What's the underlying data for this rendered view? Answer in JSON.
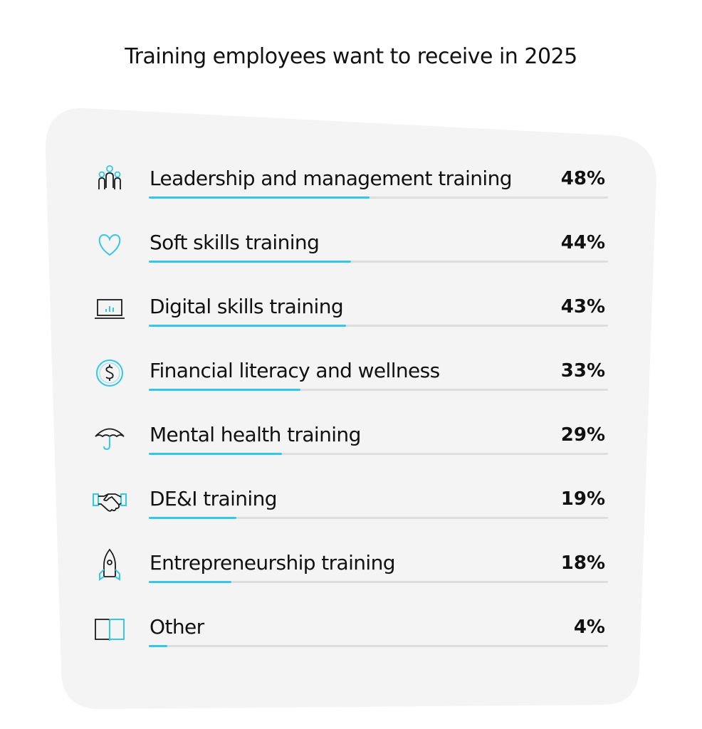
{
  "chart_data": {
    "type": "bar",
    "title": "Training employees want to receive in 2025",
    "categories": [
      "Leadership and management training",
      "Soft skills training",
      "Digital skills training",
      "Financial literacy and wellness",
      "Mental health training",
      "DE&I training",
      "Entrepreneurship training",
      "Other"
    ],
    "values": [
      48,
      44,
      43,
      33,
      29,
      19,
      18,
      4
    ],
    "value_labels": [
      "48%",
      "44%",
      "43%",
      "33%",
      "29%",
      "19%",
      "18%",
      "4%"
    ],
    "xlim": [
      0,
      100
    ],
    "orientation": "horizontal",
    "bar_color": "#35c7e8",
    "track_color": "#dddddd",
    "card_color": "#f4f4f4",
    "icons": [
      "people-group-icon",
      "heart-icon",
      "laptop-chart-icon",
      "dollar-coin-icon",
      "umbrella-icon",
      "handshake-icon",
      "rocket-icon",
      "open-book-icon"
    ]
  }
}
